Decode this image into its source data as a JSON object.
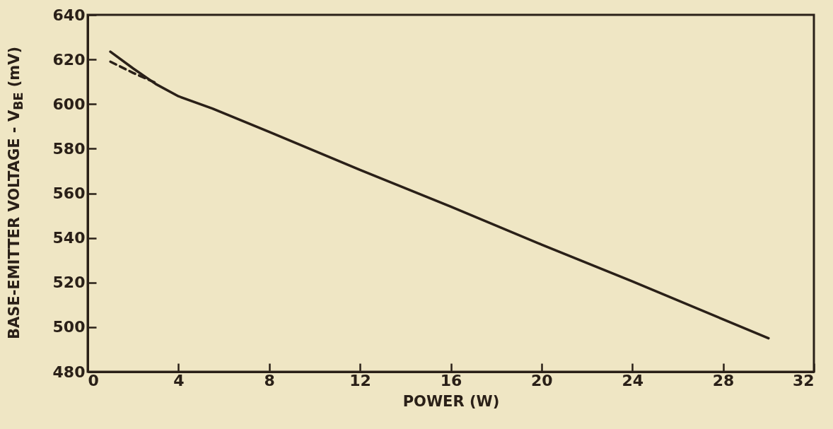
{
  "chart_data": {
    "type": "line",
    "xlabel": "POWER (W)",
    "ylabel": "BASE-EMITTER VOLTAGE - V$_{BE}$ (mV)",
    "xlim": [
      0,
      32
    ],
    "xticks": [
      0,
      4,
      8,
      12,
      16,
      20,
      24,
      28,
      32
    ],
    "ylim": [
      480,
      640
    ],
    "yticks": [
      480,
      500,
      520,
      540,
      560,
      580,
      600,
      620,
      640
    ],
    "grid": false,
    "marker": "none",
    "series": [
      {
        "color": "#2a2018",
        "line_style": "solid",
        "x": [
          1,
          2,
          3,
          4,
          5.5,
          8,
          12,
          16,
          20,
          24,
          28,
          30
        ],
        "values": [
          623.5,
          616,
          609,
          603.5,
          598,
          587.5,
          570.5,
          554,
          537,
          520.5,
          503.5,
          495
        ]
      },
      {
        "color": "#2a2018",
        "line_style": "dashed",
        "x": [
          1,
          2,
          3
        ],
        "values": [
          619,
          614,
          609.5
        ]
      }
    ]
  }
}
